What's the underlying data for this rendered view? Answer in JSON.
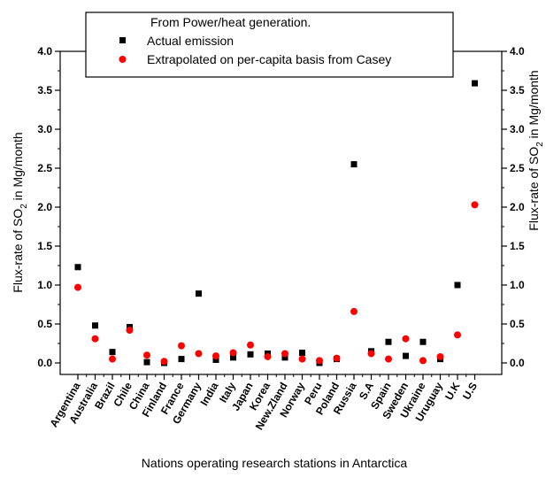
{
  "chart_data": {
    "type": "scatter",
    "xlabel": "Nations operating research stations in Antarctica",
    "ylabel_left": "Flux-rate of SO",
    "ylabel_subscript": "2",
    "ylabel_suffix": " in Mg/month",
    "ylim": [
      0,
      4.0
    ],
    "yticks": [
      "0.0",
      "0.5",
      "1.0",
      "1.5",
      "2.0",
      "2.5",
      "3.0",
      "3.5",
      "4.0"
    ],
    "legend_title": "From Power/heat generation.",
    "legend_position": "top-center",
    "categories": [
      "Argentina",
      "Australia",
      "Brazil",
      "Chile",
      "China",
      "Finland",
      "France",
      "Germany",
      "India",
      "Italy",
      "Japan",
      "Korea",
      "New.Zland",
      "Norway",
      "Peru",
      "Poland",
      "Russia",
      "S.A",
      "Spain",
      "Sweden",
      "Ukraine",
      "Uruguay",
      "U.K",
      "U.S"
    ],
    "series": [
      {
        "name": "Actual emission",
        "marker": "square",
        "color": "#000000",
        "values": [
          1.23,
          0.48,
          0.14,
          0.46,
          0.01,
          0.0,
          0.05,
          0.89,
          0.04,
          0.07,
          0.11,
          0.12,
          0.07,
          0.13,
          0.0,
          0.05,
          2.55,
          0.15,
          0.27,
          0.09,
          0.27,
          0.05,
          1.0,
          3.59
        ]
      },
      {
        "name": "Extrapolated on per-capita basis from Casey",
        "marker": "circle",
        "color": "#ff0000",
        "values": [
          0.97,
          0.31,
          0.05,
          0.42,
          0.1,
          0.02,
          0.22,
          0.12,
          0.09,
          0.13,
          0.23,
          0.08,
          0.12,
          0.05,
          0.03,
          0.06,
          0.66,
          0.12,
          0.05,
          0.31,
          0.03,
          0.08,
          0.36,
          2.03
        ]
      }
    ]
  }
}
